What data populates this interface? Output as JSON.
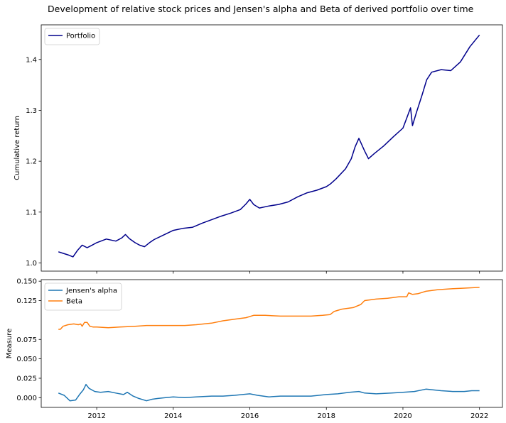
{
  "figure_title": "Development of relative stock prices and Jensen's alpha and Beta of derived portfolio over time",
  "chart_data": [
    {
      "type": "line",
      "ylabel": "Cumulative return",
      "xlim": [
        2010.55,
        2022.6
      ],
      "ylim": [
        0.984,
        1.468
      ],
      "yticks": [
        1.0,
        1.1,
        1.2,
        1.3,
        1.4
      ],
      "grid": false,
      "legend_position": "upper-left",
      "series": [
        {
          "name": "Portfolio",
          "color": "#00008b",
          "points": [
            [
              2011.0,
              1.022
            ],
            [
              2011.12,
              1.019
            ],
            [
              2011.25,
              1.016
            ],
            [
              2011.38,
              1.012
            ],
            [
              2011.5,
              1.025
            ],
            [
              2011.62,
              1.035
            ],
            [
              2011.75,
              1.03
            ],
            [
              2011.88,
              1.035
            ],
            [
              2012.0,
              1.04
            ],
            [
              2012.25,
              1.047
            ],
            [
              2012.5,
              1.043
            ],
            [
              2012.65,
              1.049
            ],
            [
              2012.75,
              1.056
            ],
            [
              2012.85,
              1.048
            ],
            [
              2013.0,
              1.04
            ],
            [
              2013.12,
              1.035
            ],
            [
              2013.25,
              1.032
            ],
            [
              2013.38,
              1.04
            ],
            [
              2013.5,
              1.046
            ],
            [
              2013.75,
              1.055
            ],
            [
              2014.0,
              1.064
            ],
            [
              2014.25,
              1.068
            ],
            [
              2014.5,
              1.07
            ],
            [
              2014.75,
              1.078
            ],
            [
              2015.0,
              1.085
            ],
            [
              2015.25,
              1.092
            ],
            [
              2015.5,
              1.098
            ],
            [
              2015.75,
              1.105
            ],
            [
              2015.9,
              1.116
            ],
            [
              2016.0,
              1.125
            ],
            [
              2016.1,
              1.115
            ],
            [
              2016.25,
              1.108
            ],
            [
              2016.5,
              1.112
            ],
            [
              2016.75,
              1.115
            ],
            [
              2017.0,
              1.12
            ],
            [
              2017.25,
              1.13
            ],
            [
              2017.5,
              1.138
            ],
            [
              2017.75,
              1.143
            ],
            [
              2018.0,
              1.15
            ],
            [
              2018.1,
              1.155
            ],
            [
              2018.25,
              1.165
            ],
            [
              2018.5,
              1.185
            ],
            [
              2018.65,
              1.205
            ],
            [
              2018.75,
              1.228
            ],
            [
              2018.85,
              1.245
            ],
            [
              2019.0,
              1.22
            ],
            [
              2019.1,
              1.205
            ],
            [
              2019.25,
              1.215
            ],
            [
              2019.5,
              1.23
            ],
            [
              2019.75,
              1.248
            ],
            [
              2020.0,
              1.265
            ],
            [
              2020.1,
              1.285
            ],
            [
              2020.2,
              1.305
            ],
            [
              2020.25,
              1.27
            ],
            [
              2020.35,
              1.295
            ],
            [
              2020.5,
              1.33
            ],
            [
              2020.62,
              1.36
            ],
            [
              2020.75,
              1.375
            ],
            [
              2021.0,
              1.38
            ],
            [
              2021.25,
              1.378
            ],
            [
              2021.5,
              1.395
            ],
            [
              2021.75,
              1.425
            ],
            [
              2022.0,
              1.448
            ]
          ]
        }
      ]
    },
    {
      "type": "line",
      "xlabel": "",
      "ylabel": "Measure",
      "xlim": [
        2010.55,
        2022.6
      ],
      "ylim": [
        -0.0125,
        0.152
      ],
      "xticks": [
        2012,
        2014,
        2016,
        2018,
        2020,
        2022
      ],
      "yticks": [
        0.0,
        0.025,
        0.05,
        0.075,
        0.125,
        0.15
      ],
      "ytick_labels": [
        "0.000",
        "0.025",
        "0.050",
        "0.075",
        "0.125",
        "0.150"
      ],
      "grid": false,
      "legend_position": "upper-left",
      "series": [
        {
          "name": "Jensen's alpha",
          "color": "#1f77b4",
          "points": [
            [
              2011.0,
              0.006
            ],
            [
              2011.15,
              0.003
            ],
            [
              2011.3,
              -0.004
            ],
            [
              2011.45,
              -0.003
            ],
            [
              2011.55,
              0.004
            ],
            [
              2011.65,
              0.01
            ],
            [
              2011.72,
              0.017
            ],
            [
              2011.8,
              0.012
            ],
            [
              2011.95,
              0.008
            ],
            [
              2012.1,
              0.007
            ],
            [
              2012.3,
              0.008
            ],
            [
              2012.5,
              0.006
            ],
            [
              2012.7,
              0.004
            ],
            [
              2012.8,
              0.007
            ],
            [
              2012.95,
              0.002
            ],
            [
              2013.1,
              -0.001
            ],
            [
              2013.3,
              -0.004
            ],
            [
              2013.45,
              -0.002
            ],
            [
              2013.6,
              -0.001
            ],
            [
              2013.8,
              0.0
            ],
            [
              2014.0,
              0.001
            ],
            [
              2014.3,
              0.0
            ],
            [
              2014.6,
              0.001
            ],
            [
              2015.0,
              0.002
            ],
            [
              2015.3,
              0.002
            ],
            [
              2015.6,
              0.003
            ],
            [
              2016.0,
              0.005
            ],
            [
              2016.2,
              0.003
            ],
            [
              2016.5,
              0.001
            ],
            [
              2016.8,
              0.002
            ],
            [
              2017.2,
              0.002
            ],
            [
              2017.6,
              0.002
            ],
            [
              2018.0,
              0.004
            ],
            [
              2018.3,
              0.005
            ],
            [
              2018.6,
              0.007
            ],
            [
              2018.85,
              0.008
            ],
            [
              2019.0,
              0.006
            ],
            [
              2019.3,
              0.005
            ],
            [
              2019.7,
              0.006
            ],
            [
              2020.0,
              0.007
            ],
            [
              2020.3,
              0.008
            ],
            [
              2020.6,
              0.011
            ],
            [
              2020.8,
              0.01
            ],
            [
              2021.0,
              0.009
            ],
            [
              2021.3,
              0.008
            ],
            [
              2021.6,
              0.008
            ],
            [
              2021.8,
              0.009
            ],
            [
              2022.0,
              0.009
            ]
          ]
        },
        {
          "name": "Beta",
          "color": "#ff7f0e",
          "points": [
            [
              2011.0,
              0.088
            ],
            [
              2011.05,
              0.088
            ],
            [
              2011.12,
              0.092
            ],
            [
              2011.25,
              0.094
            ],
            [
              2011.4,
              0.095
            ],
            [
              2011.52,
              0.094
            ],
            [
              2011.58,
              0.095
            ],
            [
              2011.62,
              0.092
            ],
            [
              2011.68,
              0.097
            ],
            [
              2011.75,
              0.097
            ],
            [
              2011.82,
              0.092
            ],
            [
              2011.9,
              0.091
            ],
            [
              2012.0,
              0.091
            ],
            [
              2012.3,
              0.09
            ],
            [
              2012.6,
              0.091
            ],
            [
              2013.0,
              0.092
            ],
            [
              2013.3,
              0.093
            ],
            [
              2013.6,
              0.093
            ],
            [
              2014.0,
              0.093
            ],
            [
              2014.3,
              0.093
            ],
            [
              2014.6,
              0.094
            ],
            [
              2015.0,
              0.096
            ],
            [
              2015.3,
              0.099
            ],
            [
              2015.6,
              0.101
            ],
            [
              2015.9,
              0.103
            ],
            [
              2016.1,
              0.106
            ],
            [
              2016.4,
              0.106
            ],
            [
              2016.8,
              0.105
            ],
            [
              2017.2,
              0.105
            ],
            [
              2017.6,
              0.105
            ],
            [
              2017.9,
              0.106
            ],
            [
              2018.1,
              0.107
            ],
            [
              2018.2,
              0.111
            ],
            [
              2018.4,
              0.114
            ],
            [
              2018.7,
              0.116
            ],
            [
              2018.9,
              0.12
            ],
            [
              2019.0,
              0.125
            ],
            [
              2019.3,
              0.127
            ],
            [
              2019.6,
              0.128
            ],
            [
              2019.9,
              0.13
            ],
            [
              2020.1,
              0.13
            ],
            [
              2020.15,
              0.135
            ],
            [
              2020.25,
              0.133
            ],
            [
              2020.4,
              0.134
            ],
            [
              2020.6,
              0.137
            ],
            [
              2020.9,
              0.139
            ],
            [
              2021.2,
              0.14
            ],
            [
              2021.6,
              0.141
            ],
            [
              2022.0,
              0.142
            ]
          ]
        }
      ]
    }
  ]
}
